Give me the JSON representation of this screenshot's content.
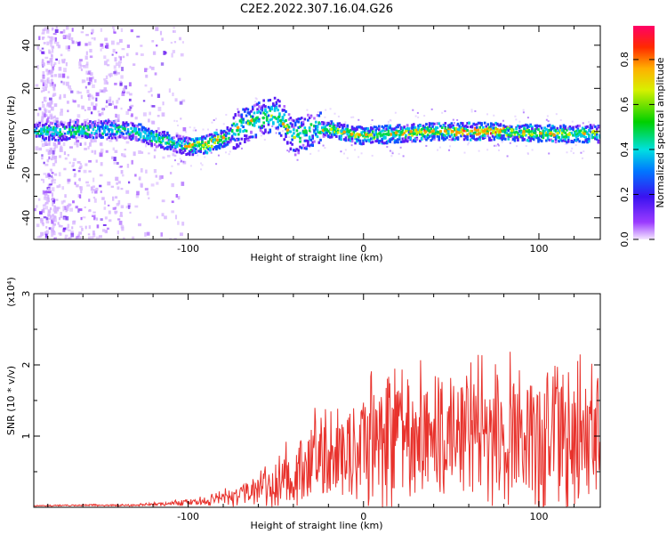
{
  "figure_title": "C2E2.2022.307.16.04.G26",
  "chart_data": [
    {
      "type": "heatmap",
      "name": "spectrogram",
      "xlabel": "Height of straight line (km)",
      "ylabel": "Frequency (Hz)",
      "xlim": [
        -188,
        135
      ],
      "ylim": [
        -50,
        49
      ],
      "xticks": [
        -100,
        0,
        100
      ],
      "yticks": [
        -40,
        -20,
        0,
        20,
        40
      ],
      "colorbar": {
        "label": "Normalized spectral amplitude",
        "range": [
          0,
          0.95
        ],
        "ticks": [
          0.0,
          0.2,
          0.4,
          0.6,
          0.8
        ],
        "tick_labels": [
          "0.0",
          "0.2",
          "0.4",
          "0.6",
          "0.8"
        ]
      },
      "ridge": {
        "x": [
          -185,
          -170,
          -150,
          -130,
          -120,
          -110,
          -100,
          -90,
          -80,
          -70,
          -60,
          -50,
          -45,
          -40,
          -30,
          -20,
          -10,
          0,
          20,
          40,
          60,
          80,
          100,
          120,
          135
        ],
        "y": [
          0,
          0,
          1,
          0,
          -3,
          -5,
          -7,
          -6,
          -3,
          2,
          6,
          8,
          3,
          -3,
          1,
          1,
          -1,
          -2,
          -1,
          0,
          0,
          0,
          -1,
          -1,
          -1
        ]
      }
    },
    {
      "type": "line",
      "name": "snr",
      "xlabel": "Height of straight line (km)",
      "ylabel": "SNR (10 * v/v)",
      "y_multiplier_label": "(x10⁴)",
      "xlim": [
        -188,
        135
      ],
      "ylim": [
        0,
        3
      ],
      "xticks": [
        -100,
        0,
        100
      ],
      "yticks": [
        1,
        2,
        3
      ],
      "color": "#e8322c",
      "envelope": {
        "x": [
          -188,
          -160,
          -130,
          -110,
          -95,
          -85,
          -70,
          -60,
          -50,
          -40,
          -30,
          -20,
          -10,
          0,
          10,
          20,
          30,
          40,
          50,
          60,
          70,
          80,
          90,
          100,
          110,
          120,
          135
        ],
        "base": [
          0.02,
          0.03,
          0.03,
          0.05,
          0.08,
          0.12,
          0.18,
          0.25,
          0.35,
          0.45,
          0.6,
          0.7,
          0.85,
          0.9,
          1.0,
          1.05,
          1.1,
          1.1,
          1.05,
          1.05,
          1.05,
          1.0,
          1.0,
          0.95,
          0.95,
          0.95,
          0.95
        ],
        "amp": [
          0.01,
          0.015,
          0.02,
          0.04,
          0.08,
          0.12,
          0.2,
          0.3,
          0.45,
          0.6,
          0.8,
          0.9,
          1.0,
          1.1,
          1.2,
          1.3,
          1.35,
          1.3,
          1.2,
          1.2,
          1.2,
          1.3,
          1.2,
          1.4,
          1.3,
          1.4,
          1.4
        ]
      }
    }
  ]
}
